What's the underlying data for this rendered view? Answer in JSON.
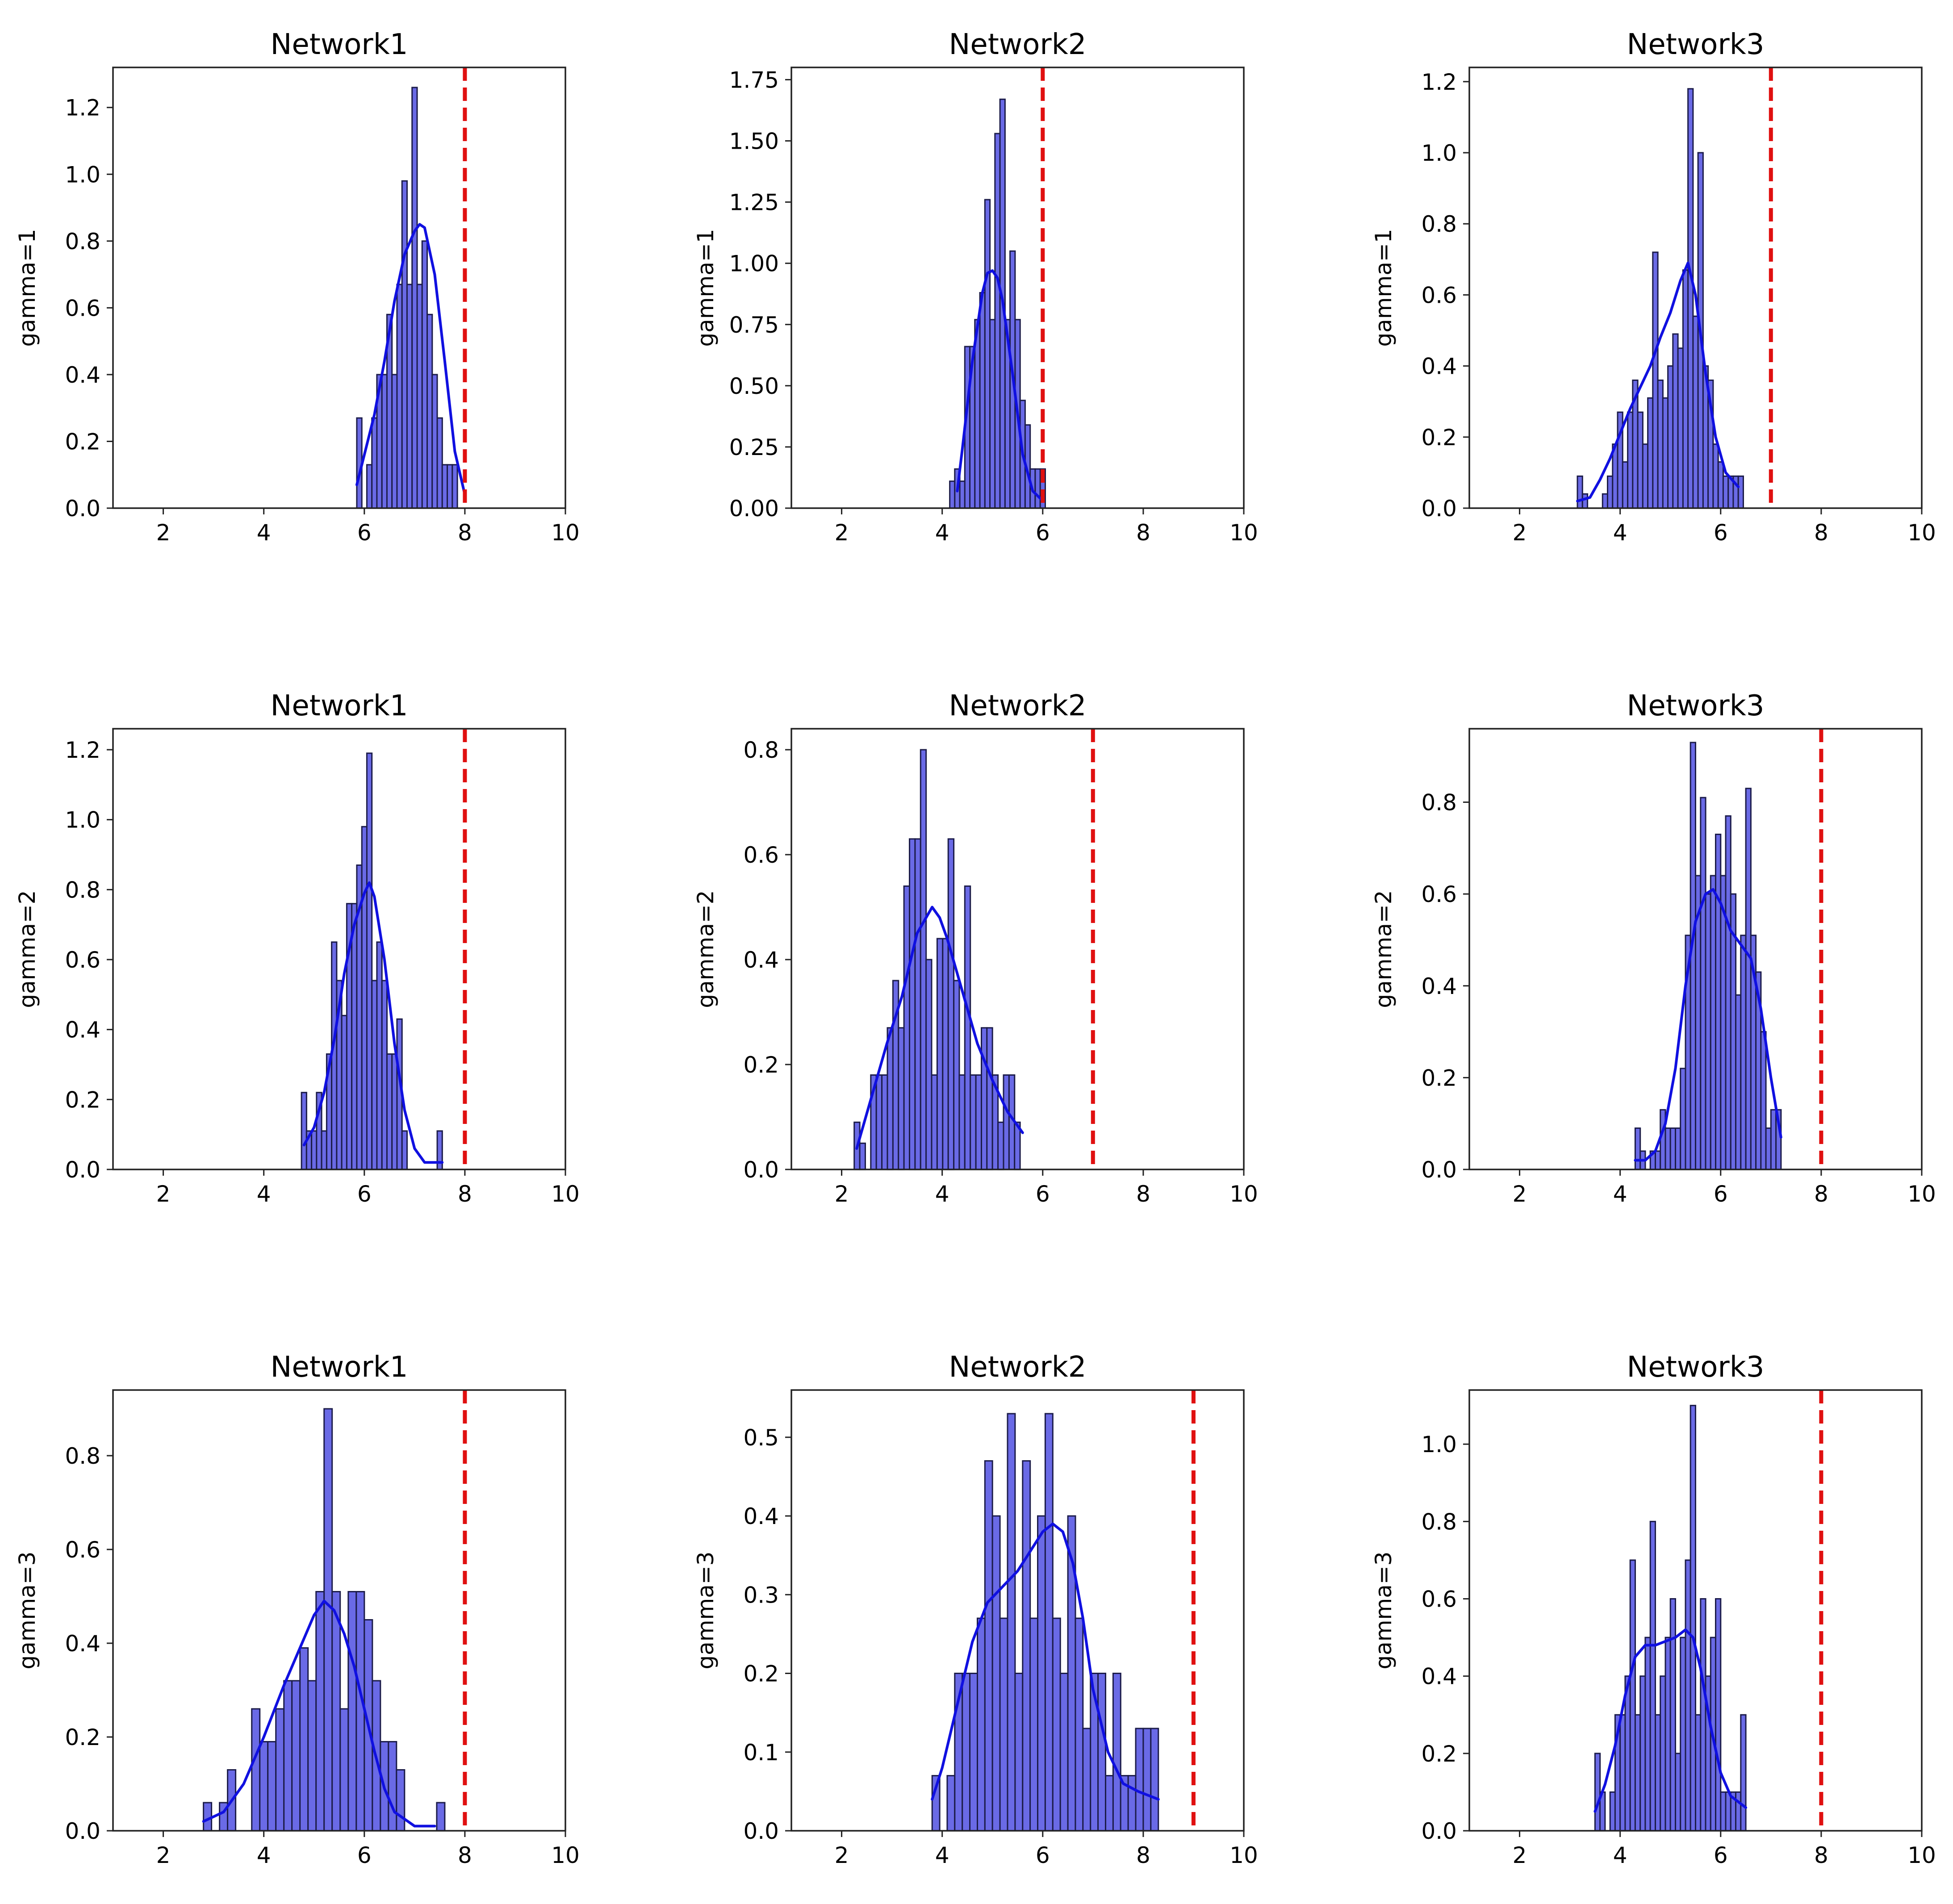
{
  "chart_data": [
    {
      "type": "bar",
      "title": "Network1",
      "ylabel": "gamma=1",
      "xlim": [
        1,
        10
      ],
      "ylim": [
        0,
        1.32
      ],
      "xticks": [
        2,
        4,
        6,
        8,
        10
      ],
      "yticks": [
        0.0,
        0.2,
        0.4,
        0.6,
        0.8,
        1.0,
        1.2
      ],
      "ytick_labels": [
        "0.0",
        "0.2",
        "0.4",
        "0.6",
        "0.8",
        "1.0",
        "1.2"
      ],
      "bin_start": 5.85,
      "bin_width": 0.1,
      "values": [
        0.27,
        0,
        0.13,
        0.27,
        0.4,
        0.4,
        0.58,
        0.4,
        0.67,
        0.98,
        0.67,
        1.26,
        0.67,
        0.8,
        0.58,
        0.4,
        0.27,
        0.13,
        0.13,
        0.13
      ],
      "kde": {
        "x": [
          5.85,
          6.0,
          6.2,
          6.4,
          6.6,
          6.8,
          7.0,
          7.1,
          7.2,
          7.4,
          7.6,
          7.8,
          8.0
        ],
        "y": [
          0.07,
          0.16,
          0.28,
          0.44,
          0.62,
          0.76,
          0.83,
          0.85,
          0.84,
          0.7,
          0.44,
          0.17,
          0.04
        ]
      },
      "vline": 8
    },
    {
      "type": "bar",
      "title": "Network2",
      "ylabel": "gamma=1",
      "xlim": [
        1,
        10
      ],
      "ylim": [
        0,
        1.8
      ],
      "xticks": [
        2,
        4,
        6,
        8,
        10
      ],
      "yticks": [
        0.0,
        0.25,
        0.5,
        0.75,
        1.0,
        1.25,
        1.5,
        1.75
      ],
      "ytick_labels": [
        "0.00",
        "0.25",
        "0.50",
        "0.75",
        "1.00",
        "1.25",
        "1.50",
        "1.75"
      ],
      "bin_start": 4.15,
      "bin_width": 0.1,
      "values": [
        0.11,
        0.16,
        0.11,
        0.66,
        0.66,
        0.77,
        0.88,
        1.26,
        0.77,
        1.53,
        1.67,
        0.77,
        1.05,
        0.77,
        0.44,
        0.34,
        0.16,
        0.16,
        0.16
      ],
      "kde": {
        "x": [
          4.3,
          4.4,
          4.6,
          4.8,
          4.9,
          5.0,
          5.1,
          5.2,
          5.4,
          5.6,
          5.8,
          6.0
        ],
        "y": [
          0.07,
          0.24,
          0.6,
          0.88,
          0.96,
          0.97,
          0.94,
          0.85,
          0.55,
          0.22,
          0.07,
          0.03
        ]
      },
      "vline": 6
    },
    {
      "type": "bar",
      "title": "Network3",
      "ylabel": "gamma=1",
      "xlim": [
        1,
        10
      ],
      "ylim": [
        0,
        1.24
      ],
      "xticks": [
        2,
        4,
        6,
        8,
        10
      ],
      "yticks": [
        0.0,
        0.2,
        0.4,
        0.6,
        0.8,
        1.0,
        1.2
      ],
      "ytick_labels": [
        "0.0",
        "0.2",
        "0.4",
        "0.6",
        "0.8",
        "1.0",
        "1.2"
      ],
      "bin_start": 3.15,
      "bin_width": 0.1,
      "values": [
        0.09,
        0.04,
        0,
        0,
        0,
        0.04,
        0.09,
        0.18,
        0.27,
        0.13,
        0.27,
        0.36,
        0.27,
        0.18,
        0.31,
        0.72,
        0.36,
        0.31,
        0.4,
        0.49,
        0.45,
        0.67,
        1.18,
        0.54,
        1.0,
        0.4,
        0.36,
        0.18,
        0.13,
        0.09,
        0.09,
        0.09,
        0.09
      ],
      "kde": {
        "x": [
          3.15,
          3.4,
          3.6,
          3.8,
          4.0,
          4.2,
          4.4,
          4.6,
          4.8,
          5.0,
          5.2,
          5.35,
          5.5,
          5.7,
          5.9,
          6.1,
          6.35
        ],
        "y": [
          0.02,
          0.03,
          0.08,
          0.14,
          0.21,
          0.28,
          0.34,
          0.4,
          0.48,
          0.55,
          0.64,
          0.69,
          0.6,
          0.38,
          0.2,
          0.1,
          0.06
        ]
      },
      "vline": 7
    },
    {
      "type": "bar",
      "title": "Network1",
      "ylabel": "gamma=2",
      "xlim": [
        1,
        10
      ],
      "ylim": [
        0,
        1.26
      ],
      "xticks": [
        2,
        4,
        6,
        8,
        10
      ],
      "yticks": [
        0.0,
        0.2,
        0.4,
        0.6,
        0.8,
        1.0,
        1.2
      ],
      "ytick_labels": [
        "0.0",
        "0.2",
        "0.4",
        "0.6",
        "0.8",
        "1.0",
        "1.2"
      ],
      "bin_start": 4.75,
      "bin_width": 0.1,
      "values": [
        0.22,
        0.11,
        0.11,
        0.22,
        0.11,
        0.33,
        0.65,
        0.54,
        0.44,
        0.76,
        0.76,
        0.87,
        0.98,
        1.19,
        0.54,
        0.65,
        0.54,
        0.33,
        0.33,
        0.43,
        0.11,
        0,
        0,
        0,
        0,
        0,
        0,
        0.11
      ],
      "kde": {
        "x": [
          4.8,
          5.0,
          5.2,
          5.4,
          5.6,
          5.8,
          6.0,
          6.1,
          6.2,
          6.4,
          6.6,
          6.8,
          7.0,
          7.2,
          7.4,
          7.55
        ],
        "y": [
          0.07,
          0.12,
          0.22,
          0.37,
          0.56,
          0.7,
          0.79,
          0.82,
          0.78,
          0.6,
          0.36,
          0.17,
          0.06,
          0.02,
          0.02,
          0.02
        ]
      },
      "vline": 8
    },
    {
      "type": "bar",
      "title": "Network2",
      "ylabel": "gamma=2",
      "xlim": [
        1,
        10
      ],
      "ylim": [
        0,
        0.84
      ],
      "xticks": [
        2,
        4,
        6,
        8,
        10
      ],
      "yticks": [
        0.0,
        0.2,
        0.4,
        0.6,
        0.8
      ],
      "ytick_labels": [
        "0.0",
        "0.2",
        "0.4",
        "0.6",
        "0.8"
      ],
      "bin_start": 2.25,
      "bin_width": 0.11,
      "values": [
        0.09,
        0.05,
        0,
        0.18,
        0.18,
        0.18,
        0.27,
        0.36,
        0.27,
        0.54,
        0.63,
        0.63,
        0.8,
        0.4,
        0.18,
        0.44,
        0.44,
        0.63,
        0.36,
        0.18,
        0.54,
        0.18,
        0.18,
        0.27,
        0.27,
        0.18,
        0.09,
        0.18,
        0.18,
        0.09
      ],
      "kde": {
        "x": [
          2.3,
          2.6,
          2.9,
          3.2,
          3.5,
          3.8,
          3.95,
          4.1,
          4.4,
          4.7,
          5.0,
          5.3,
          5.6
        ],
        "y": [
          0.04,
          0.14,
          0.24,
          0.33,
          0.45,
          0.5,
          0.48,
          0.44,
          0.34,
          0.24,
          0.17,
          0.11,
          0.07
        ]
      },
      "vline": 7
    },
    {
      "type": "bar",
      "title": "Network3",
      "ylabel": "gamma=2",
      "xlim": [
        1,
        10
      ],
      "ylim": [
        0,
        0.96
      ],
      "xticks": [
        2,
        4,
        6,
        8,
        10
      ],
      "yticks": [
        0.0,
        0.2,
        0.4,
        0.6,
        0.8
      ],
      "ytick_labels": [
        "0.0",
        "0.2",
        "0.4",
        "0.6",
        "0.8"
      ],
      "bin_start": 4.3,
      "bin_width": 0.1,
      "values": [
        0.09,
        0.04,
        0,
        0.04,
        0.04,
        0.13,
        0.09,
        0.09,
        0.09,
        0.22,
        0.51,
        0.93,
        0.64,
        0.81,
        0.6,
        0.64,
        0.73,
        0.64,
        0.77,
        0.6,
        0.38,
        0.51,
        0.83,
        0.51,
        0.43,
        0.3,
        0.09,
        0.13,
        0.13
      ],
      "kde": {
        "x": [
          4.3,
          4.5,
          4.7,
          4.9,
          5.1,
          5.3,
          5.5,
          5.7,
          5.85,
          6.0,
          6.2,
          6.4,
          6.6,
          6.8,
          7.0,
          7.2
        ],
        "y": [
          0.02,
          0.02,
          0.04,
          0.1,
          0.22,
          0.4,
          0.54,
          0.6,
          0.61,
          0.58,
          0.52,
          0.49,
          0.46,
          0.35,
          0.2,
          0.07
        ]
      },
      "vline": 8
    },
    {
      "type": "bar",
      "title": "Network1",
      "ylabel": "gamma=3",
      "xlim": [
        1,
        10
      ],
      "ylim": [
        0,
        0.94
      ],
      "xticks": [
        2,
        4,
        6,
        8,
        10
      ],
      "yticks": [
        0.0,
        0.2,
        0.4,
        0.6,
        0.8
      ],
      "ytick_labels": [
        "0.0",
        "0.2",
        "0.4",
        "0.6",
        "0.8"
      ],
      "bin_start": 2.8,
      "bin_width": 0.16,
      "values": [
        0.06,
        0,
        0.06,
        0.13,
        0,
        0,
        0.26,
        0.19,
        0.19,
        0.26,
        0.32,
        0.32,
        0.39,
        0.32,
        0.51,
        0.9,
        0.51,
        0.26,
        0.51,
        0.51,
        0.45,
        0.32,
        0.19,
        0.19,
        0.13,
        0,
        0,
        0,
        0,
        0.06
      ],
      "kde": {
        "x": [
          2.8,
          3.2,
          3.6,
          4.0,
          4.4,
          4.8,
          5.0,
          5.2,
          5.4,
          5.6,
          5.8,
          6.0,
          6.2,
          6.4,
          6.6,
          7.0,
          7.4
        ],
        "y": [
          0.02,
          0.04,
          0.1,
          0.2,
          0.31,
          0.41,
          0.46,
          0.49,
          0.47,
          0.42,
          0.35,
          0.26,
          0.17,
          0.09,
          0.04,
          0.01,
          0.01
        ]
      },
      "vline": 8
    },
    {
      "type": "bar",
      "title": "Network2",
      "ylabel": "gamma=3",
      "xlim": [
        1,
        10
      ],
      "ylim": [
        0,
        0.56
      ],
      "xticks": [
        2,
        4,
        6,
        8,
        10
      ],
      "yticks": [
        0.0,
        0.1,
        0.2,
        0.3,
        0.4,
        0.5
      ],
      "ytick_labels": [
        "0.0",
        "0.1",
        "0.2",
        "0.3",
        "0.4",
        "0.5"
      ],
      "bin_start": 3.8,
      "bin_width": 0.15,
      "values": [
        0.07,
        0,
        0.07,
        0.2,
        0.2,
        0.2,
        0.27,
        0.47,
        0.4,
        0.27,
        0.53,
        0.2,
        0.47,
        0.27,
        0.4,
        0.53,
        0.27,
        0.2,
        0.4,
        0.27,
        0.13,
        0.2,
        0.2,
        0.07,
        0.2,
        0.07,
        0.07,
        0.13,
        0.13,
        0.13
      ],
      "kde": {
        "x": [
          3.8,
          4.0,
          4.3,
          4.6,
          4.9,
          5.2,
          5.5,
          5.8,
          6.0,
          6.2,
          6.4,
          6.6,
          6.8,
          7.0,
          7.3,
          7.6,
          7.9,
          8.3
        ],
        "y": [
          0.04,
          0.08,
          0.16,
          0.24,
          0.29,
          0.31,
          0.33,
          0.36,
          0.38,
          0.39,
          0.38,
          0.34,
          0.27,
          0.18,
          0.1,
          0.06,
          0.05,
          0.04
        ]
      },
      "vline": 9
    },
    {
      "type": "bar",
      "title": "Network3",
      "ylabel": "gamma=3",
      "xlim": [
        1,
        10
      ],
      "ylim": [
        0,
        1.14
      ],
      "xticks": [
        2,
        4,
        6,
        8,
        10
      ],
      "yticks": [
        0.0,
        0.2,
        0.4,
        0.6,
        0.8,
        1.0
      ],
      "ytick_labels": [
        "0.0",
        "0.2",
        "0.4",
        "0.6",
        "0.8",
        "1.0"
      ],
      "bin_start": 3.5,
      "bin_width": 0.1,
      "values": [
        0.2,
        0.1,
        0,
        0.1,
        0.3,
        0.3,
        0.4,
        0.7,
        0.3,
        0.4,
        0.5,
        0.8,
        0.3,
        0.4,
        0.5,
        0.6,
        0.2,
        0.5,
        0.7,
        1.1,
        0.3,
        0.6,
        0.4,
        0.5,
        0.6,
        0.1,
        0.1,
        0.1,
        0.1,
        0.3
      ],
      "kde": {
        "x": [
          3.5,
          3.7,
          3.9,
          4.1,
          4.3,
          4.5,
          4.7,
          4.9,
          5.1,
          5.3,
          5.45,
          5.6,
          5.8,
          6.0,
          6.2,
          6.5
        ],
        "y": [
          0.05,
          0.12,
          0.22,
          0.35,
          0.45,
          0.48,
          0.48,
          0.49,
          0.5,
          0.52,
          0.5,
          0.42,
          0.27,
          0.15,
          0.09,
          0.06
        ]
      },
      "vline": 8
    }
  ]
}
